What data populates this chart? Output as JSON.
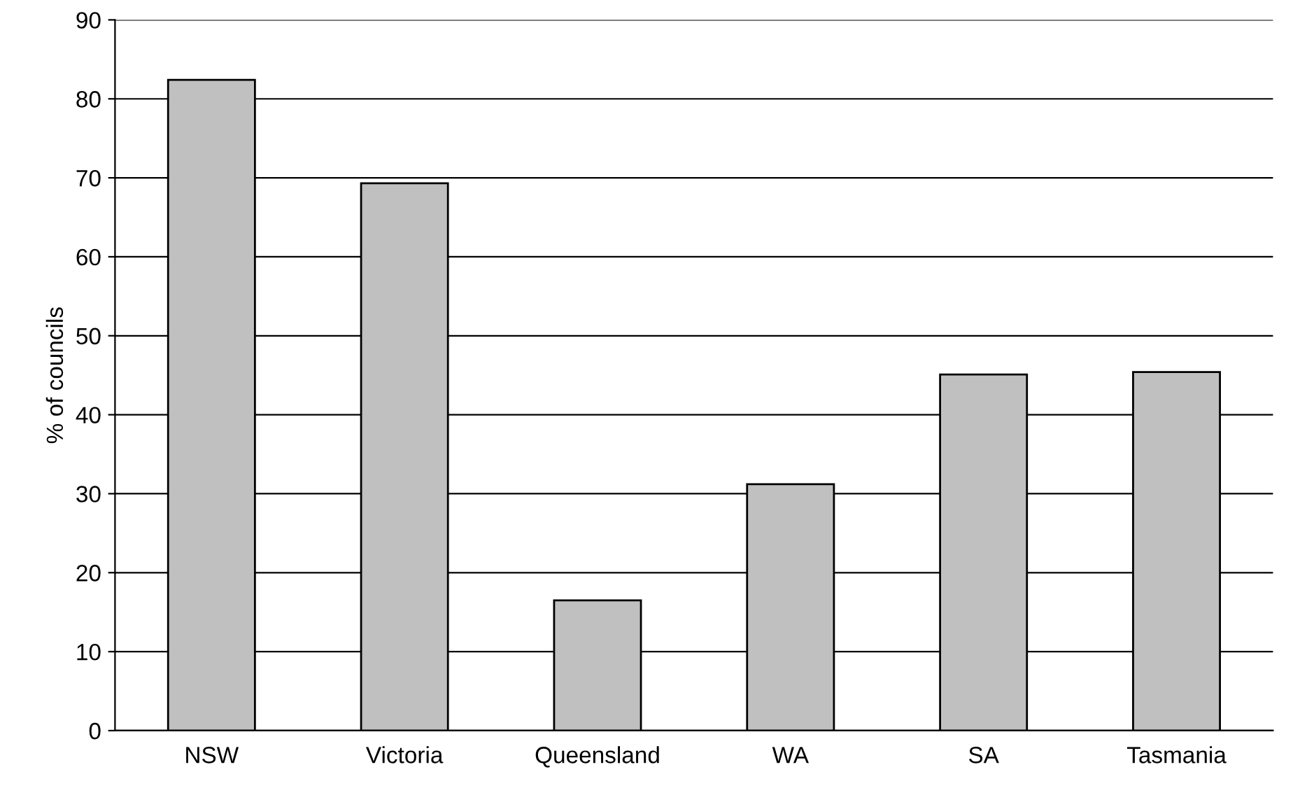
{
  "chart_data": {
    "type": "bar",
    "ylabel": "% of councils",
    "categories": [
      "NSW",
      "Victoria",
      "Queensland",
      "WA",
      "SA",
      "Tasmania"
    ],
    "values": [
      82.4,
      69.3,
      16.5,
      31.2,
      45.1,
      45.4
    ],
    "color": "#c0c0c0",
    "ylim": [
      0,
      90
    ],
    "yticks": [
      0,
      10,
      20,
      30,
      40,
      50,
      60,
      70,
      80,
      90
    ],
    "grid": "y",
    "legend": false
  }
}
